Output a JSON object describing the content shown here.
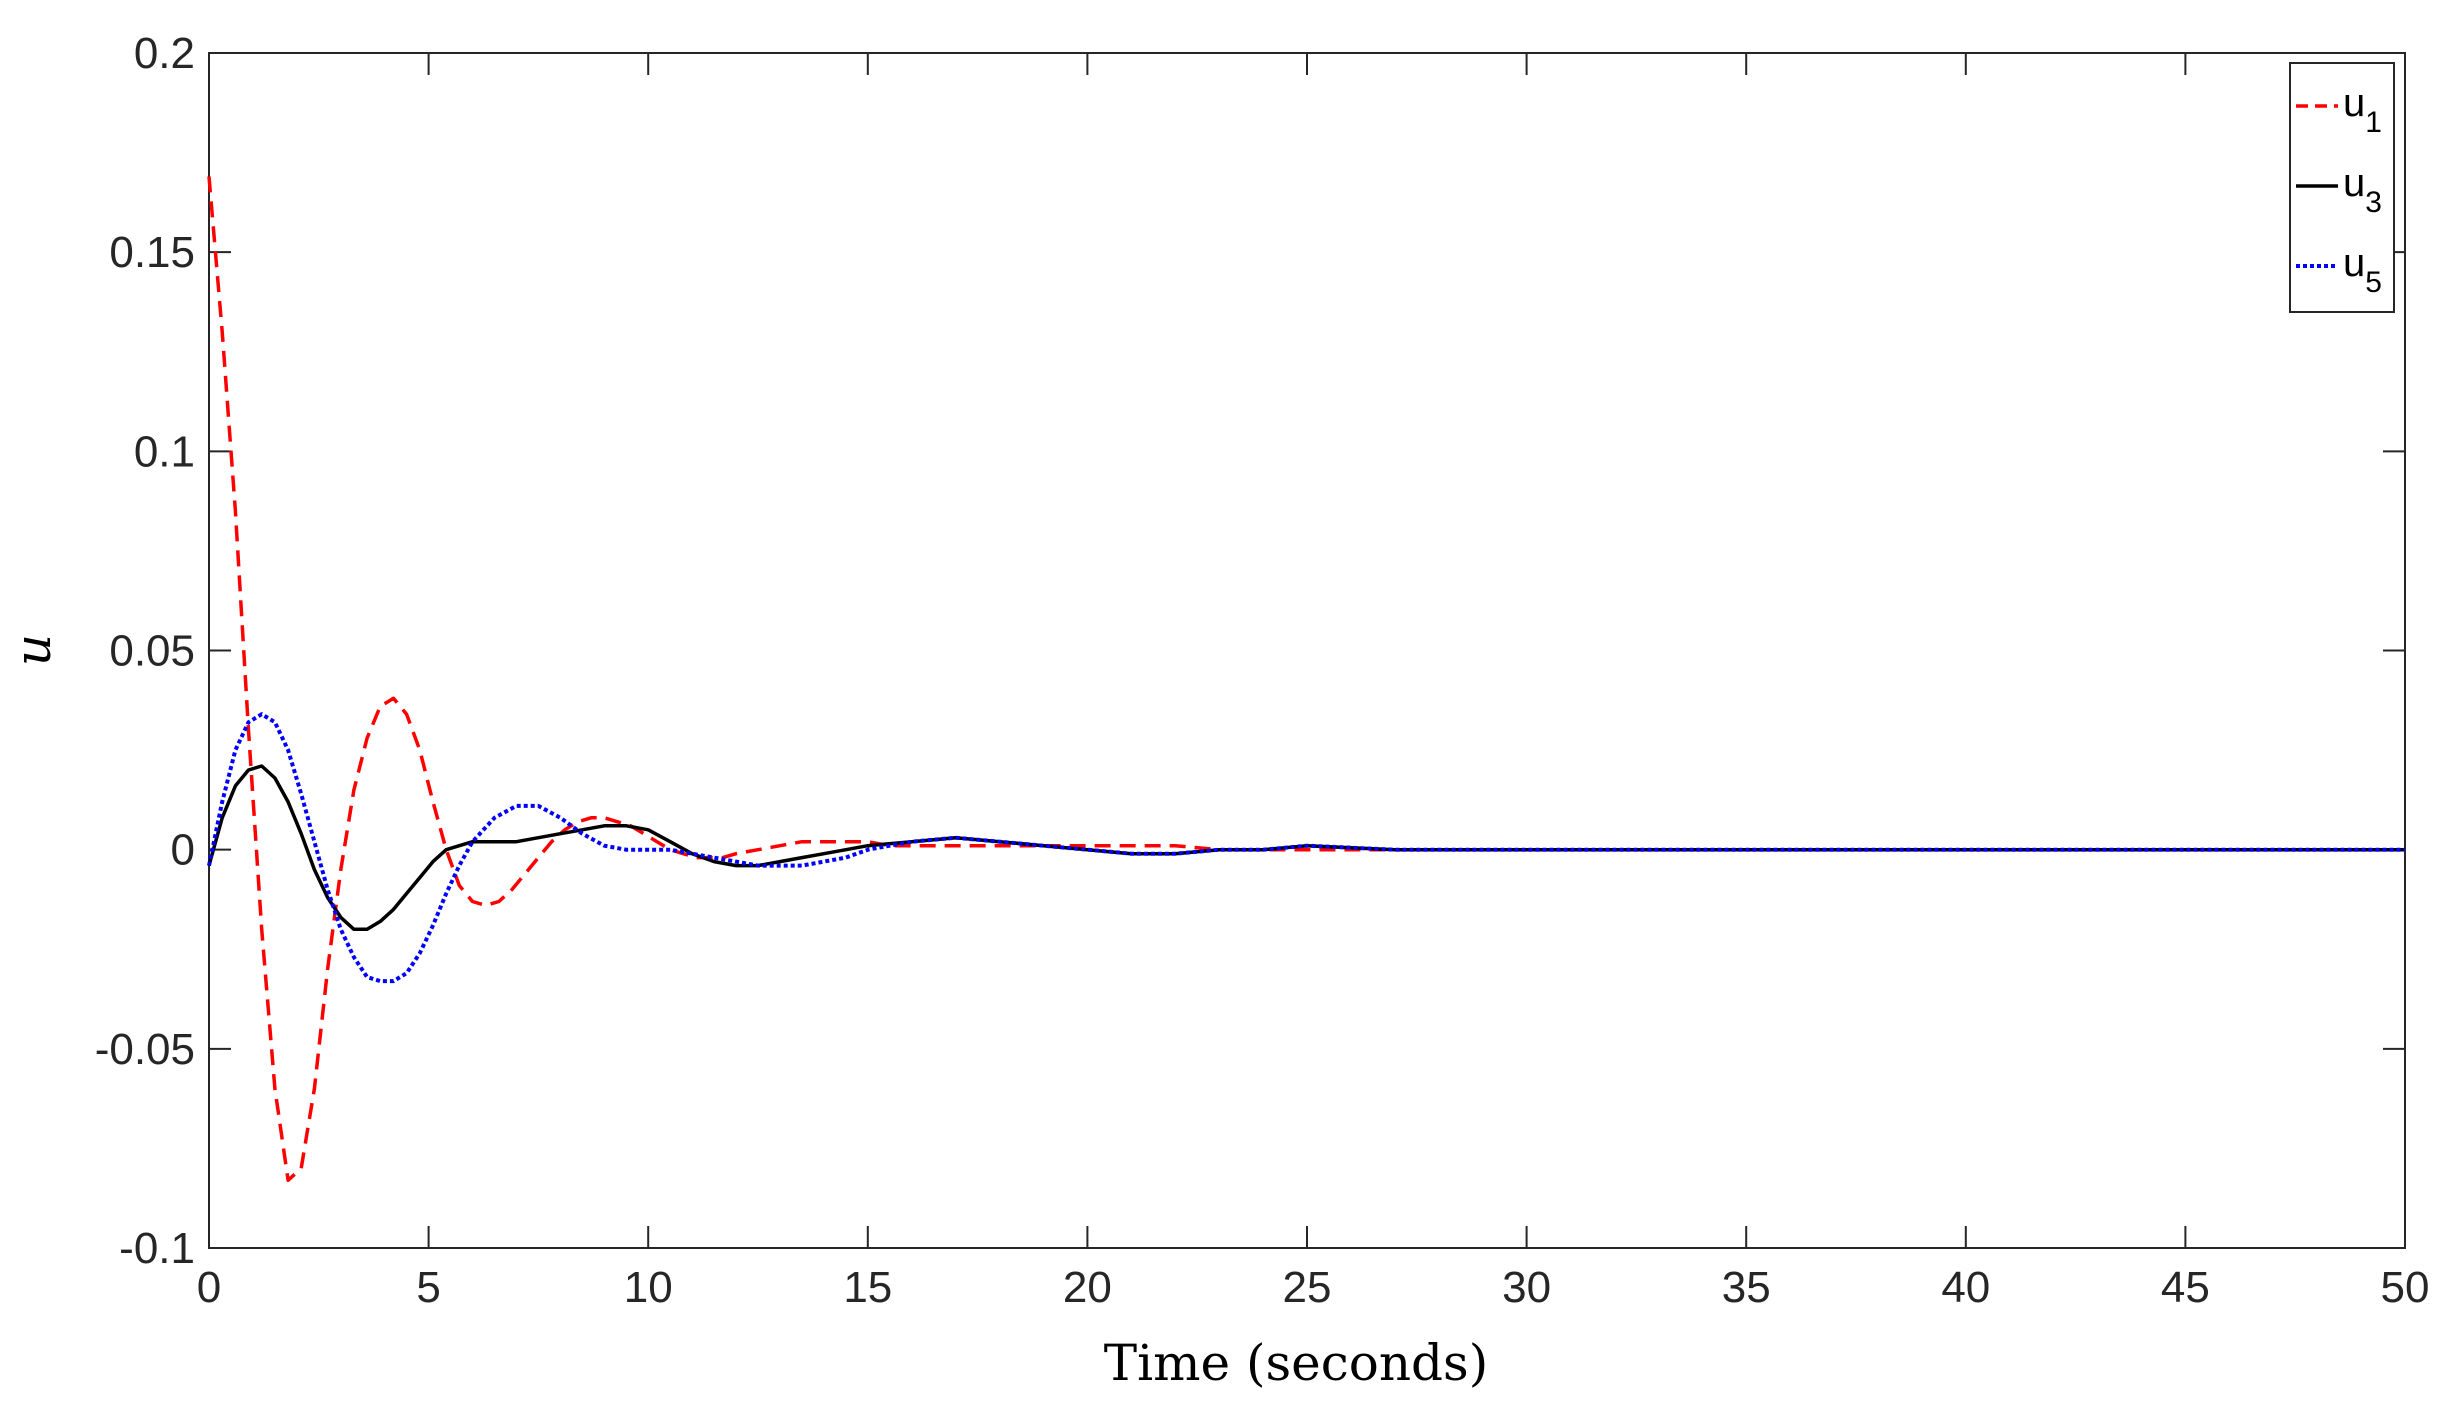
{
  "chart_data": {
    "type": "line",
    "title": "",
    "xlabel": "Time (seconds)",
    "ylabel": "u",
    "xlim": [
      0,
      50
    ],
    "ylim": [
      -0.1,
      0.2
    ],
    "xticks": [
      0,
      5,
      10,
      15,
      20,
      25,
      30,
      35,
      40,
      45,
      50
    ],
    "yticks": [
      -0.1,
      -0.05,
      0,
      0.05,
      0.1,
      0.15,
      0.2
    ],
    "xtick_labels": [
      "0",
      "5",
      "10",
      "15",
      "20",
      "25",
      "30",
      "35",
      "40",
      "45",
      "50"
    ],
    "ytick_labels": [
      "-0.1",
      "-0.05",
      "0",
      "0.05",
      "0.1",
      "0.15",
      "0.2"
    ],
    "grid": false,
    "legend_position": "top-right",
    "series": [
      {
        "name": "u",
        "subscript": "1",
        "color": "#ff0000",
        "style": "dashed",
        "x": [
          0,
          0.3,
          0.6,
          0.9,
          1.2,
          1.5,
          1.8,
          2.1,
          2.4,
          2.7,
          3.0,
          3.3,
          3.6,
          3.9,
          4.2,
          4.5,
          4.8,
          5.1,
          5.4,
          5.7,
          6.0,
          6.3,
          6.6,
          6.9,
          7.2,
          7.5,
          7.8,
          8.1,
          8.4,
          8.7,
          9.0,
          9.3,
          9.6,
          9.9,
          10.2,
          10.5,
          10.8,
          11.1,
          11.4,
          11.7,
          12.0,
          12.5,
          13.0,
          13.5,
          14.0,
          14.5,
          15.0,
          15.5,
          16.0,
          16.5,
          17.0,
          17.5,
          18.0,
          19.0,
          20.0,
          21.0,
          22.0,
          23.0,
          24.0,
          25.0,
          27.0,
          30.0,
          35.0,
          40.0,
          45.0,
          50.0
        ],
        "y": [
          0.169,
          0.13,
          0.085,
          0.03,
          -0.02,
          -0.06,
          -0.083,
          -0.08,
          -0.06,
          -0.03,
          -0.005,
          0.015,
          0.028,
          0.036,
          0.038,
          0.034,
          0.025,
          0.012,
          0.0,
          -0.009,
          -0.013,
          -0.014,
          -0.013,
          -0.01,
          -0.006,
          -0.002,
          0.002,
          0.005,
          0.007,
          0.008,
          0.008,
          0.007,
          0.006,
          0.004,
          0.002,
          0.0,
          -0.001,
          -0.002,
          -0.002,
          -0.002,
          -0.001,
          0.0,
          0.001,
          0.002,
          0.002,
          0.002,
          0.002,
          0.001,
          0.001,
          0.001,
          0.001,
          0.001,
          0.001,
          0.001,
          0.001,
          0.001,
          0.001,
          0.0,
          0.0,
          0.0,
          0.0,
          0.0,
          0.0,
          0.0,
          0.0,
          0.0
        ]
      },
      {
        "name": "u",
        "subscript": "3",
        "color": "#000000",
        "style": "solid",
        "x": [
          0,
          0.3,
          0.6,
          0.9,
          1.2,
          1.5,
          1.8,
          2.1,
          2.4,
          2.7,
          3.0,
          3.3,
          3.6,
          3.9,
          4.2,
          4.5,
          4.8,
          5.1,
          5.4,
          5.7,
          6.0,
          6.5,
          7.0,
          7.5,
          8.0,
          8.5,
          9.0,
          9.5,
          10.0,
          10.5,
          11.0,
          11.5,
          12.0,
          12.5,
          13.0,
          13.5,
          14.0,
          15.0,
          16.0,
          17.0,
          18.0,
          19.0,
          20.0,
          21.0,
          22.0,
          23.0,
          24.0,
          25.0,
          27.0,
          30.0,
          35.0,
          40.0,
          45.0,
          50.0
        ],
        "y": [
          -0.004,
          0.008,
          0.016,
          0.02,
          0.021,
          0.018,
          0.012,
          0.004,
          -0.005,
          -0.012,
          -0.017,
          -0.02,
          -0.02,
          -0.018,
          -0.015,
          -0.011,
          -0.007,
          -0.003,
          0.0,
          0.001,
          0.002,
          0.002,
          0.002,
          0.003,
          0.004,
          0.005,
          0.006,
          0.006,
          0.005,
          0.002,
          -0.001,
          -0.003,
          -0.004,
          -0.004,
          -0.003,
          -0.002,
          -0.001,
          0.001,
          0.002,
          0.003,
          0.002,
          0.001,
          0.0,
          -0.001,
          -0.001,
          0.0,
          0.0,
          0.001,
          0.0,
          0.0,
          0.0,
          0.0,
          0.0,
          0.0
        ]
      },
      {
        "name": "u",
        "subscript": "5",
        "color": "#0000ff",
        "style": "dotted",
        "x": [
          0,
          0.3,
          0.6,
          0.9,
          1.2,
          1.5,
          1.8,
          2.1,
          2.4,
          2.7,
          3.0,
          3.3,
          3.6,
          3.9,
          4.2,
          4.5,
          4.8,
          5.1,
          5.4,
          5.7,
          6.0,
          6.5,
          7.0,
          7.5,
          8.0,
          8.5,
          9.0,
          9.5,
          10.0,
          10.5,
          11.0,
          11.5,
          12.0,
          12.5,
          13.0,
          13.5,
          14.0,
          14.5,
          15.0,
          16.0,
          17.0,
          18.0,
          19.0,
          20.0,
          21.0,
          22.0,
          23.0,
          24.0,
          25.0,
          27.0,
          30.0,
          35.0,
          40.0,
          45.0,
          50.0
        ],
        "y": [
          -0.004,
          0.012,
          0.025,
          0.032,
          0.034,
          0.032,
          0.025,
          0.014,
          0.002,
          -0.01,
          -0.02,
          -0.027,
          -0.032,
          -0.033,
          -0.033,
          -0.031,
          -0.026,
          -0.019,
          -0.011,
          -0.004,
          0.002,
          0.008,
          0.011,
          0.011,
          0.008,
          0.004,
          0.001,
          0.0,
          0.0,
          0.0,
          -0.001,
          -0.002,
          -0.003,
          -0.004,
          -0.004,
          -0.004,
          -0.003,
          -0.002,
          0.0,
          0.002,
          0.003,
          0.002,
          0.001,
          0.0,
          -0.001,
          -0.001,
          0.0,
          0.0,
          0.001,
          0.0,
          0.0,
          0.0,
          0.0,
          0.0,
          0.0
        ]
      }
    ]
  }
}
